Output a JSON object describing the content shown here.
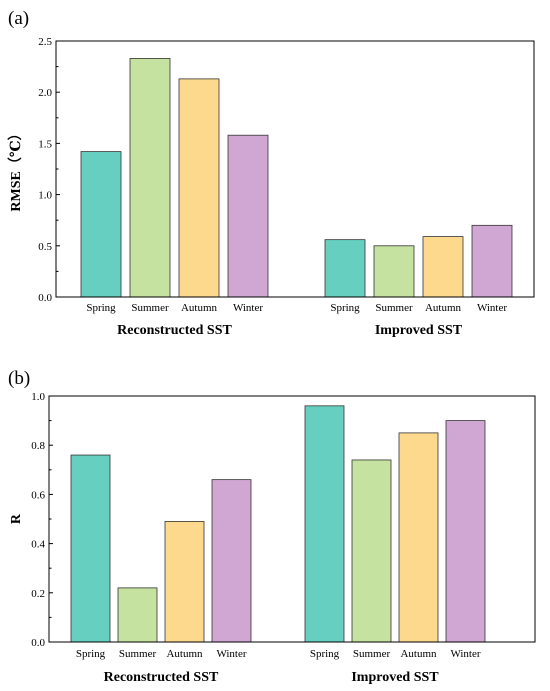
{
  "chart_data": [
    {
      "type": "bar",
      "panel_label": "(a)",
      "ylabel": "RMSE（℃）",
      "ylim": [
        0,
        2.5
      ],
      "yticks": [
        "0.0",
        "0.5",
        "1.0",
        "1.5",
        "2.0",
        "2.5"
      ],
      "groups": [
        {
          "name": "Reconstructed SST",
          "categories": [
            "Spring",
            "Summer",
            "Autumn",
            "Winter"
          ],
          "values": [
            1.42,
            2.33,
            2.13,
            1.58
          ]
        },
        {
          "name": "Improved SST",
          "categories": [
            "Spring",
            "Summer",
            "Autumn",
            "Winter"
          ],
          "values": [
            0.56,
            0.5,
            0.59,
            0.7
          ]
        }
      ],
      "colors": [
        "#66cfc0",
        "#c6e2a0",
        "#fdd98e",
        "#d0a7d3"
      ],
      "grid": false
    },
    {
      "type": "bar",
      "panel_label": "(b)",
      "ylabel": "R",
      "ylim": [
        0,
        1.0
      ],
      "yticks": [
        "0.0",
        "0.2",
        "0.4",
        "0.6",
        "0.8",
        "1.0"
      ],
      "groups": [
        {
          "name": "Reconstructed SST",
          "categories": [
            "Spring",
            "Summer",
            "Autumn",
            "Winter"
          ],
          "values": [
            0.76,
            0.22,
            0.49,
            0.66
          ]
        },
        {
          "name": "Improved SST",
          "categories": [
            "Spring",
            "Summer",
            "Autumn",
            "Winter"
          ],
          "values": [
            0.96,
            0.74,
            0.85,
            0.9
          ]
        }
      ],
      "colors": [
        "#66cfc0",
        "#c6e2a0",
        "#fdd98e",
        "#d0a7d3"
      ],
      "grid": false
    }
  ]
}
